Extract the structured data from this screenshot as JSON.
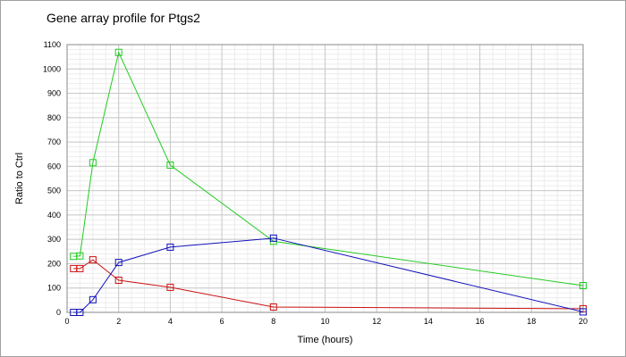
{
  "chart_data": {
    "type": "line",
    "title": "Gene array profile for Ptgs2",
    "xlabel": "Time (hours)",
    "ylabel": "Ratio to Ctrl",
    "xlim": [
      0,
      20
    ],
    "ylim": [
      0,
      1100
    ],
    "x_ticks": [
      0,
      2,
      4,
      6,
      8,
      10,
      12,
      14,
      16,
      18,
      20
    ],
    "y_ticks": [
      0,
      100,
      200,
      300,
      400,
      500,
      600,
      700,
      800,
      900,
      1000,
      1100
    ],
    "grid": true,
    "legend": "none",
    "series": [
      {
        "color": "#22cc22",
        "marker": "square",
        "x": [
          0.25,
          0.5,
          1,
          2,
          4,
          8,
          20
        ],
        "y": [
          230,
          232,
          615,
          1068,
          605,
          292,
          110
        ]
      },
      {
        "color": "#cc1111",
        "marker": "square",
        "x": [
          0.25,
          0.5,
          1,
          2,
          4,
          8,
          20
        ],
        "y": [
          180,
          180,
          216,
          132,
          103,
          22,
          15
        ]
      },
      {
        "color": "#1111bb",
        "marker": "square",
        "x": [
          0.25,
          0.5,
          1,
          2,
          4,
          8,
          20
        ],
        "y": [
          0,
          0,
          52,
          205,
          268,
          305,
          2
        ]
      }
    ]
  }
}
